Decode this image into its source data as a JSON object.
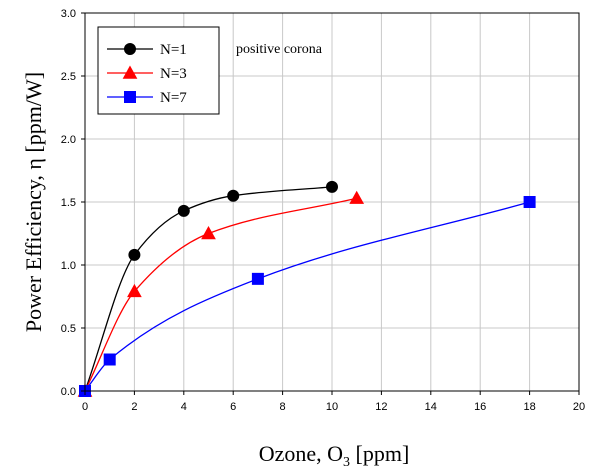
{
  "chart_data": {
    "type": "line",
    "xlabel": "Ozone, O",
    "xlabel_sub": "3",
    "xlabel_suffix": " [ppm]",
    "ylabel": "Power Efficiency, η [ppm/W]",
    "xlim": [
      0,
      20
    ],
    "ylim": [
      0,
      3.0
    ],
    "xticks": [
      "0",
      "2",
      "4",
      "6",
      "8",
      "10",
      "12",
      "14",
      "16",
      "18",
      "20"
    ],
    "yticks": [
      "0.0",
      "0.5",
      "1.0",
      "1.5",
      "2.0",
      "2.5",
      "3.0"
    ],
    "grid": true,
    "legend_position": "top-left",
    "annotation": "positive corona",
    "series": [
      {
        "name": "N=1",
        "color": "#000000",
        "marker": "circle",
        "points": [
          [
            0,
            0
          ],
          [
            2,
            1.08
          ],
          [
            4,
            1.43
          ],
          [
            6,
            1.55
          ],
          [
            10,
            1.62
          ]
        ]
      },
      {
        "name": "N=3",
        "color": "#ff0000",
        "marker": "triangle",
        "points": [
          [
            0,
            0
          ],
          [
            2,
            0.79
          ],
          [
            5,
            1.25
          ],
          [
            11,
            1.53
          ]
        ]
      },
      {
        "name": "N=7",
        "color": "#0000ff",
        "marker": "square",
        "points": [
          [
            0,
            0
          ],
          [
            1,
            0.25
          ],
          [
            7,
            0.89
          ],
          [
            18,
            1.5
          ]
        ]
      }
    ]
  }
}
